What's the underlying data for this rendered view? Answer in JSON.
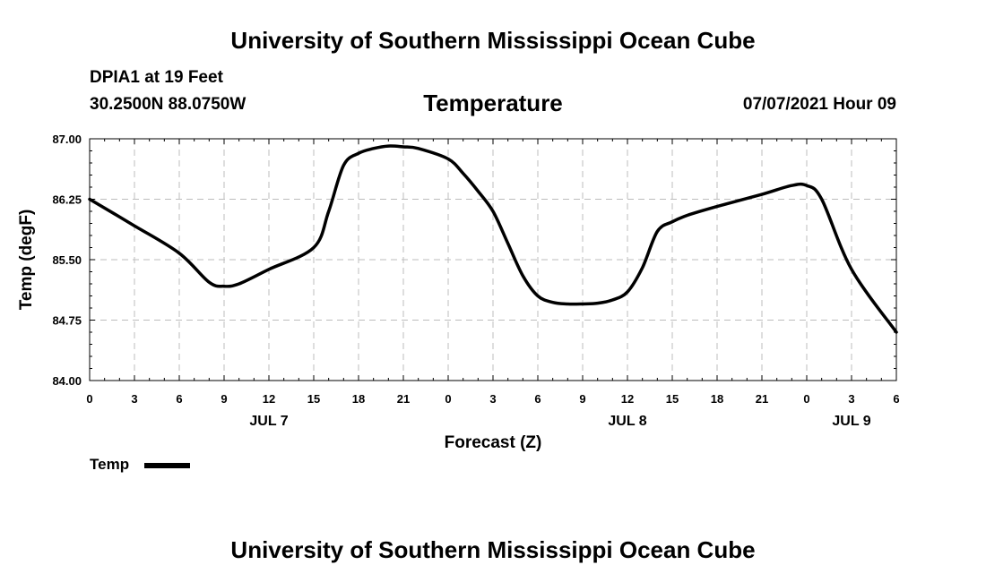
{
  "header": {
    "title": "University of Southern Mississippi Ocean Cube",
    "station": "DPIA1 at 19 Feet",
    "coordinates": "30.2500N  88.0750W",
    "chart_title": "Temperature",
    "timestamp": "07/07/2021 Hour 09"
  },
  "footer": {
    "title": "University of Southern Mississippi Ocean Cube"
  },
  "colors": {
    "line": "#000000",
    "grid": "#bdbdbd",
    "background": "#ffffff"
  },
  "chart_data": {
    "type": "line",
    "title": "Temperature",
    "xlabel": "Forecast (Z)",
    "ylabel": "Temp (degF)",
    "ylim": [
      84.0,
      87.0
    ],
    "xlim": [
      0,
      54
    ],
    "grid": true,
    "legend_position": "bottom-left",
    "y_ticks": [
      "84.00",
      "84.75",
      "85.50",
      "86.25",
      "87.00"
    ],
    "y_tick_values": [
      84.0,
      84.75,
      85.5,
      86.25,
      87.0
    ],
    "x_ticks": [
      "0",
      "3",
      "6",
      "9",
      "12",
      "15",
      "18",
      "21",
      "0",
      "3",
      "6",
      "9",
      "12",
      "15",
      "18",
      "21",
      "0",
      "3",
      "6"
    ],
    "x_tick_values": [
      0,
      3,
      6,
      9,
      12,
      15,
      18,
      21,
      24,
      27,
      30,
      33,
      36,
      39,
      42,
      45,
      48,
      51,
      54
    ],
    "date_labels": [
      {
        "label": "JUL 7",
        "at": 12
      },
      {
        "label": "JUL 8",
        "at": 36
      },
      {
        "label": "JUL 9",
        "at": 51
      }
    ],
    "series": [
      {
        "name": "Temp",
        "x": [
          0,
          3,
          6,
          8,
          9,
          10,
          12,
          15,
          16,
          17,
          18,
          19,
          20,
          21,
          22,
          24,
          25,
          26,
          27,
          28,
          29,
          30,
          31,
          32,
          33,
          34,
          35,
          36,
          37,
          38,
          39,
          40,
          42,
          45,
          47,
          48,
          49,
          51,
          54
        ],
        "values": [
          86.25,
          85.92,
          85.58,
          85.22,
          85.17,
          85.2,
          85.38,
          85.65,
          86.1,
          86.67,
          86.82,
          86.88,
          86.91,
          86.9,
          86.88,
          86.75,
          86.57,
          86.35,
          86.1,
          85.7,
          85.3,
          85.05,
          84.97,
          84.95,
          84.95,
          84.96,
          85.0,
          85.1,
          85.4,
          85.85,
          85.97,
          86.05,
          86.16,
          86.31,
          86.42,
          86.42,
          86.25,
          85.38,
          84.6
        ]
      }
    ]
  }
}
